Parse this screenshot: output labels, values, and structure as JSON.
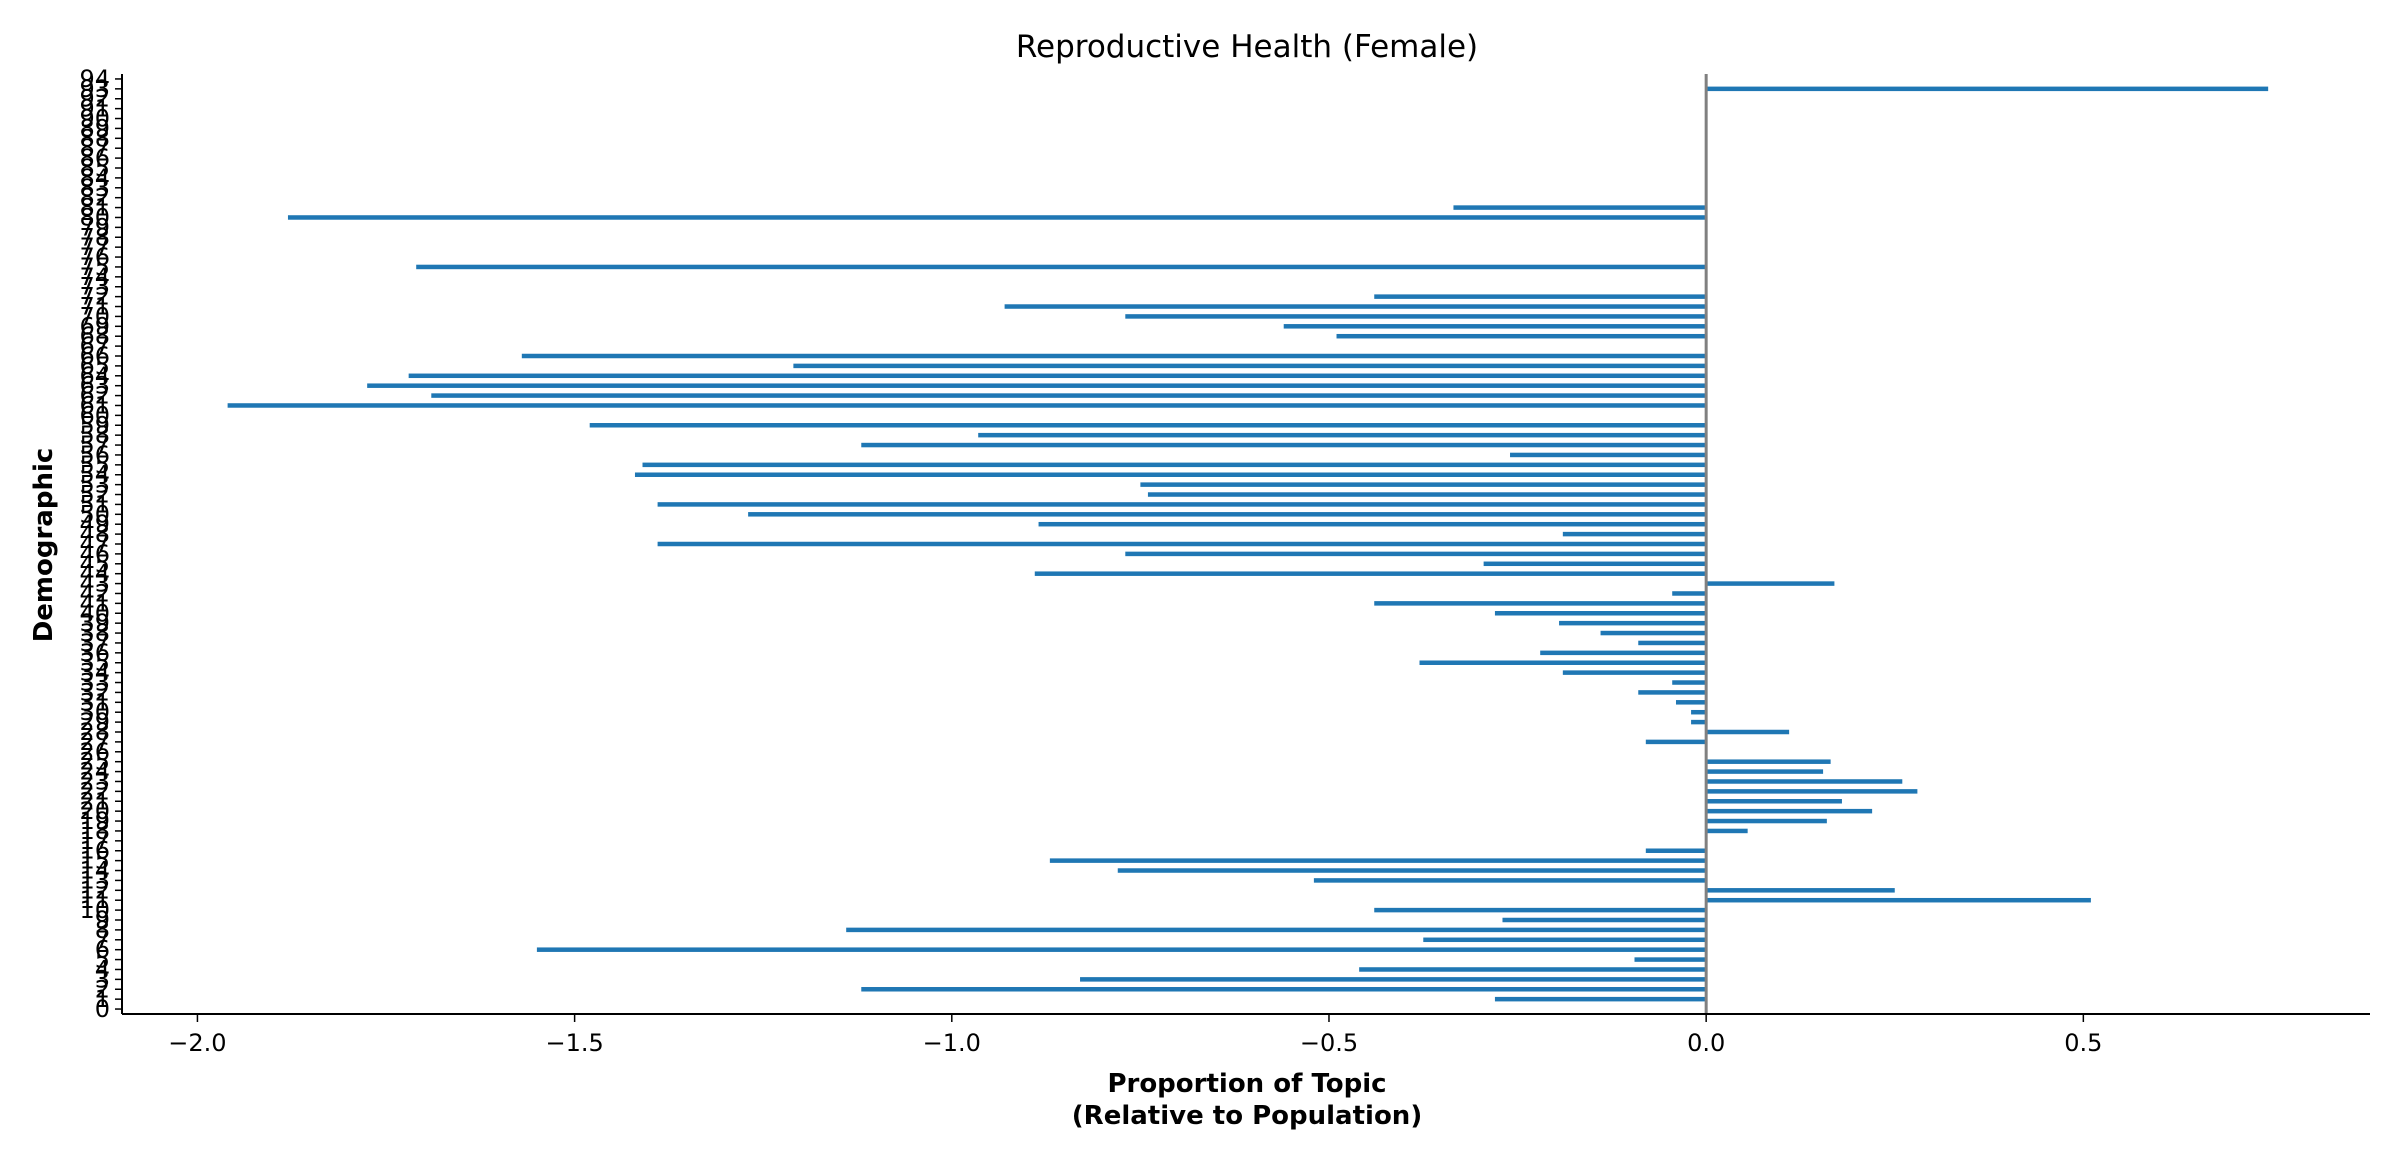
{
  "chart_data": {
    "type": "bar",
    "orientation": "horizontal",
    "title": "Reproductive Health (Female)",
    "xlabel_lines": [
      "Proportion of Topic",
      "(Relative to Population)"
    ],
    "ylabel": "Demographic",
    "xlim": [
      -2.1,
      0.88
    ],
    "ylim": [
      -0.5,
      94.5
    ],
    "xticks": [
      {
        "value": -2.0,
        "label": "−2.0"
      },
      {
        "value": -1.5,
        "label": "−1.5"
      },
      {
        "value": -1.0,
        "label": "−1.0"
      },
      {
        "value": -0.5,
        "label": "−0.5"
      },
      {
        "value": 0.0,
        "label": "0.0"
      },
      {
        "value": 0.5,
        "label": "0.5"
      }
    ],
    "categories": [
      0,
      1,
      2,
      3,
      4,
      5,
      6,
      7,
      8,
      9,
      10,
      11,
      12,
      13,
      14,
      15,
      16,
      17,
      18,
      19,
      20,
      21,
      22,
      23,
      24,
      25,
      26,
      27,
      28,
      29,
      30,
      31,
      32,
      33,
      34,
      35,
      36,
      37,
      38,
      39,
      40,
      41,
      42,
      43,
      44,
      45,
      46,
      47,
      48,
      49,
      50,
      51,
      52,
      53,
      54,
      55,
      56,
      57,
      58,
      59,
      60,
      61,
      62,
      63,
      64,
      65,
      66,
      67,
      68,
      69,
      70,
      71,
      72,
      73,
      74,
      75,
      76,
      77,
      78,
      79,
      80,
      81,
      82,
      83,
      84,
      85,
      86,
      87,
      88,
      89,
      90,
      91,
      92,
      93,
      94
    ],
    "values": [
      0,
      -0.28,
      -1.12,
      -0.83,
      -0.46,
      -0.095,
      -1.55,
      -0.375,
      -1.14,
      -0.27,
      -0.44,
      0.51,
      0.25,
      -0.52,
      -0.78,
      -0.87,
      -0.08,
      0,
      0.055,
      0.16,
      0.22,
      0.18,
      0.28,
      0.26,
      0.155,
      0.165,
      0,
      -0.08,
      0.11,
      -0.02,
      -0.02,
      -0.04,
      -0.09,
      -0.045,
      -0.19,
      -0.38,
      -0.22,
      -0.09,
      -0.14,
      -0.195,
      -0.28,
      -0.44,
      -0.045,
      0.17,
      -0.89,
      -0.295,
      -0.77,
      -1.39,
      -0.19,
      -0.885,
      -1.27,
      -1.39,
      -0.74,
      -0.75,
      -1.42,
      -1.41,
      -0.26,
      -1.12,
      -0.965,
      -1.48,
      0,
      -1.96,
      -1.69,
      -1.775,
      -1.72,
      -1.21,
      -1.57,
      0,
      -0.49,
      -0.56,
      -0.77,
      -0.93,
      -0.44,
      0,
      0,
      -1.71,
      0,
      0,
      0,
      0,
      -1.88,
      -0.335,
      0,
      0,
      0,
      0,
      0,
      0,
      0,
      0,
      0,
      0,
      0,
      0.745,
      0
    ],
    "zero_line": true,
    "grid": false,
    "legend": "none",
    "colors": {
      "bar": "#1f77b4",
      "zero_line": "#808080",
      "axis": "#000000",
      "text": "#000000"
    }
  }
}
